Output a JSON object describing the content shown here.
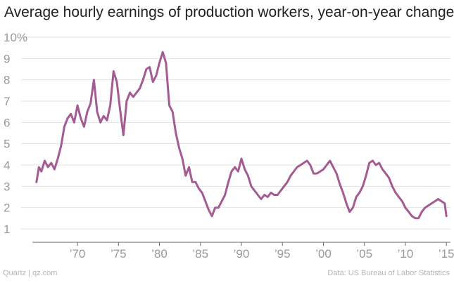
{
  "title": "Average hourly earnings of production workers, year-on-year change",
  "footer": {
    "source_left": "Quartz | qz.com",
    "source_right": "Data: US Bureau of Labor Statistics"
  },
  "colors": {
    "line": "#a45b93",
    "grid": "#e3e3e3",
    "tick_text": "#9a9a9a",
    "axis": "#666666"
  },
  "chart_data": {
    "type": "line",
    "title": "Average hourly earnings of production workers, year-on-year change",
    "xlabel": "",
    "ylabel": "",
    "xlim": [
      1964.5,
      2015.5
    ],
    "ylim": [
      0,
      10
    ],
    "grid": true,
    "y_ticks": [
      1,
      2,
      3,
      4,
      5,
      6,
      7,
      8,
      9,
      10
    ],
    "y_tick_labels": [
      "1",
      "2",
      "3",
      "4",
      "5",
      "6",
      "7",
      "8",
      "9",
      "10%"
    ],
    "x_ticks": [
      1970,
      1975,
      1980,
      1985,
      1990,
      1995,
      2000,
      2005,
      2010,
      2015
    ],
    "x_tick_labels": [
      "’70",
      "’75",
      "’80",
      "’85",
      "’90",
      "’95",
      "’00",
      "’05",
      "’10",
      "’15"
    ],
    "series": [
      {
        "x": [
          1965.0,
          1965.3,
          1965.6,
          1966.0,
          1966.4,
          1966.8,
          1967.2,
          1967.6,
          1968.0,
          1968.4,
          1968.8,
          1969.2,
          1969.6,
          1970.0,
          1970.4,
          1970.8,
          1971.2,
          1971.6,
          1972.0,
          1972.4,
          1972.8,
          1973.2,
          1973.6,
          1974.0,
          1974.4,
          1974.8,
          1975.2,
          1975.6,
          1976.0,
          1976.4,
          1976.8,
          1977.2,
          1977.6,
          1978.0,
          1978.4,
          1978.8,
          1979.2,
          1979.6,
          1980.0,
          1980.4,
          1980.8,
          1981.2,
          1981.6,
          1982.0,
          1982.4,
          1982.8,
          1983.2,
          1983.6,
          1984.0,
          1984.4,
          1984.8,
          1985.2,
          1985.6,
          1986.0,
          1986.4,
          1986.8,
          1987.2,
          1987.6,
          1988.0,
          1988.4,
          1988.8,
          1989.2,
          1989.6,
          1990.0,
          1990.4,
          1990.8,
          1991.2,
          1991.6,
          1992.0,
          1992.4,
          1992.8,
          1993.2,
          1993.6,
          1994.0,
          1994.4,
          1994.8,
          1995.2,
          1995.6,
          1996.0,
          1996.4,
          1996.8,
          1997.2,
          1997.6,
          1998.0,
          1998.4,
          1998.8,
          1999.2,
          1999.6,
          2000.0,
          2000.4,
          2000.8,
          2001.2,
          2001.6,
          2002.0,
          2002.4,
          2002.8,
          2003.2,
          2003.6,
          2004.0,
          2004.4,
          2004.8,
          2005.2,
          2005.6,
          2006.0,
          2006.4,
          2006.8,
          2007.2,
          2007.6,
          2008.0,
          2008.4,
          2008.8,
          2009.2,
          2009.6,
          2010.0,
          2010.4,
          2010.8,
          2011.2,
          2011.6,
          2012.0,
          2012.4,
          2012.8,
          2013.2,
          2013.6,
          2014.0,
          2014.4,
          2014.8,
          2015.0
        ],
        "y": [
          3.2,
          3.9,
          3.7,
          4.2,
          3.9,
          4.1,
          3.8,
          4.3,
          4.9,
          5.8,
          6.2,
          6.4,
          6.0,
          6.8,
          6.2,
          5.8,
          6.5,
          6.9,
          8.0,
          6.5,
          6.0,
          6.3,
          6.1,
          6.8,
          8.4,
          7.9,
          6.6,
          5.4,
          7.0,
          7.4,
          7.2,
          7.4,
          7.6,
          8.0,
          8.5,
          8.6,
          7.9,
          8.2,
          8.8,
          9.3,
          8.8,
          6.8,
          6.5,
          5.5,
          4.8,
          4.3,
          3.5,
          3.9,
          3.2,
          3.2,
          2.9,
          2.7,
          2.3,
          1.9,
          1.6,
          2.0,
          2.0,
          2.3,
          2.6,
          3.2,
          3.7,
          3.9,
          3.7,
          4.3,
          3.8,
          3.5,
          3.0,
          2.8,
          2.6,
          2.4,
          2.6,
          2.5,
          2.7,
          2.6,
          2.6,
          2.8,
          3.0,
          3.2,
          3.5,
          3.7,
          3.9,
          4.0,
          4.1,
          4.2,
          4.0,
          3.6,
          3.6,
          3.7,
          3.8,
          4.0,
          4.2,
          3.9,
          3.6,
          3.1,
          2.7,
          2.2,
          1.8,
          2.0,
          2.5,
          2.7,
          3.0,
          3.5,
          4.1,
          4.2,
          4.0,
          4.1,
          3.8,
          3.6,
          3.4,
          3.0,
          2.7,
          2.5,
          2.3,
          2.0,
          1.8,
          1.6,
          1.5,
          1.5,
          1.8,
          2.0,
          2.1,
          2.2,
          2.3,
          2.4,
          2.3,
          2.2,
          1.6
        ]
      }
    ]
  }
}
